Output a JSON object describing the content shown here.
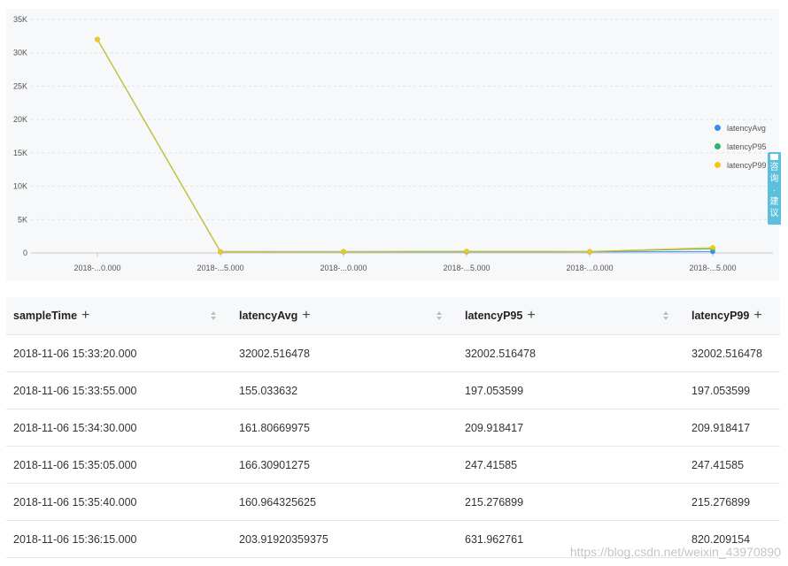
{
  "chart_data": {
    "type": "line",
    "x_tick_labels": [
      "2018-...0.000",
      "2018-...5.000",
      "2018-...0.000",
      "2018-...5.000",
      "2018-...0.000",
      "2018-...5.000"
    ],
    "y_tick_labels": [
      "0",
      "5K",
      "10K",
      "15K",
      "20K",
      "25K",
      "30K",
      "35K"
    ],
    "ylim": [
      0,
      35000
    ],
    "grid": true,
    "legend_position": "right",
    "series": [
      {
        "name": "latencyAvg",
        "color": "#3b8ee8",
        "values": [
          32002.516478,
          155.033632,
          161.80669975,
          166.30901275,
          160.964325625,
          203.91920359375
        ]
      },
      {
        "name": "latencyP95",
        "color": "#2fb26b",
        "values": [
          32002.516478,
          197.053599,
          209.918417,
          247.41585,
          215.276899,
          631.962761
        ]
      },
      {
        "name": "latencyP99",
        "color": "#f5c518",
        "values": [
          32002.516478,
          197.053599,
          209.918417,
          247.41585,
          215.276899,
          820.209154
        ]
      }
    ]
  },
  "legend": {
    "items": [
      "latencyAvg",
      "latencyP95",
      "latencyP99"
    ]
  },
  "feedback_tab": {
    "text": "咨询·建议",
    "icon": "chat-icon"
  },
  "table": {
    "columns": [
      "sampleTime",
      "latencyAvg",
      "latencyP95",
      "latencyP99"
    ],
    "rows": [
      [
        "2018-11-06 15:33:20.000",
        "32002.516478",
        "32002.516478",
        "32002.516478"
      ],
      [
        "2018-11-06 15:33:55.000",
        "155.033632",
        "197.053599",
        "197.053599"
      ],
      [
        "2018-11-06 15:34:30.000",
        "161.80669975",
        "209.918417",
        "209.918417"
      ],
      [
        "2018-11-06 15:35:05.000",
        "166.30901275",
        "247.41585",
        "247.41585"
      ],
      [
        "2018-11-06 15:35:40.000",
        "160.964325625",
        "215.276899",
        "215.276899"
      ],
      [
        "2018-11-06 15:36:15.000",
        "203.91920359375",
        "631.962761",
        "820.209154"
      ]
    ]
  },
  "watermark": "https://blog.csdn.net/weixin_43970890"
}
